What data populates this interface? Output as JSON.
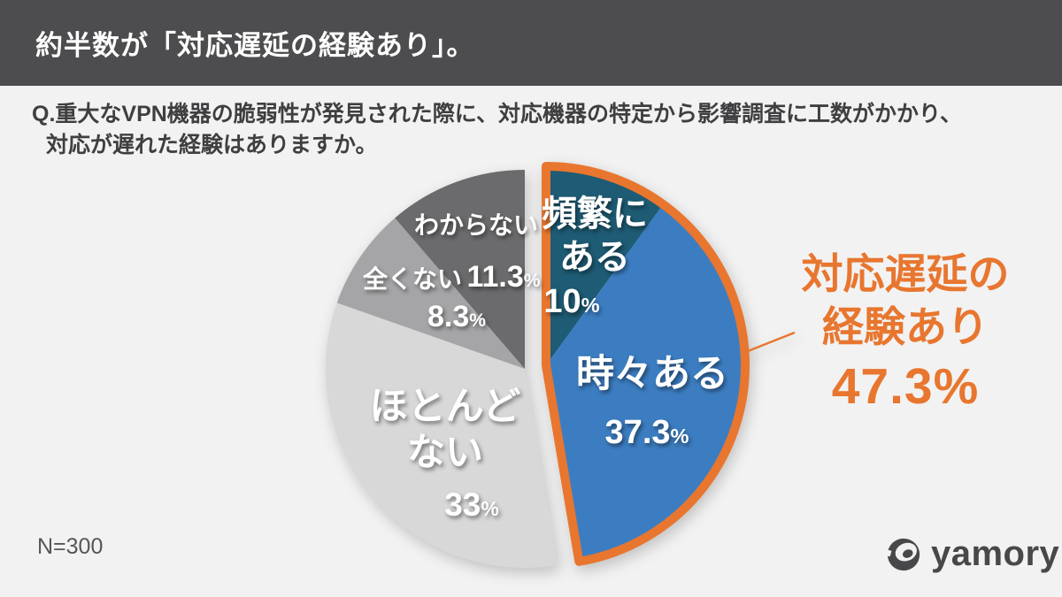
{
  "header": {
    "title": "約半数が「対応遅延の経験あり」。",
    "bg_color": "#4D4D4F",
    "text_color": "#FFFFFF"
  },
  "question": {
    "line1": "Q.重大なVPN機器の脆弱性が発見された際に、対応機器の特定から影響調査に工数がかかり、",
    "line2": "対応が遅れた経験はありますか。"
  },
  "chart_data": {
    "type": "pie",
    "unit": "%",
    "start_angle_deg": 0,
    "direction": "clockwise",
    "legend": "none",
    "categories": [
      "頻繁にある",
      "時々ある",
      "ほとんどない",
      "全くない",
      "わからない"
    ],
    "values": [
      10,
      37.3,
      33,
      8.3,
      11.3
    ],
    "percent_suffix": "%",
    "slices": [
      {
        "label": "頻繁に\nある",
        "value": 10,
        "value_display": "10",
        "color": "#1E5B74",
        "highlighted": true
      },
      {
        "label": "時々ある",
        "value": 37.3,
        "value_display": "37.3",
        "color": "#3C7DC1",
        "highlighted": true
      },
      {
        "label": "ほとんど\nない",
        "value": 33,
        "value_display": "33",
        "color": "#D8D8D8",
        "highlighted": false
      },
      {
        "label": "全くない",
        "value": 8.3,
        "value_display": "8.3",
        "color": "#A5A5A7",
        "highlighted": false
      },
      {
        "label": "わからない",
        "value": 11.3,
        "value_display": "11.3",
        "color": "#6B6B6D",
        "highlighted": false
      }
    ],
    "highlight_color": "#E8762F",
    "callout": {
      "line1": "対応遅延の",
      "line2": "経験あり",
      "value": "47.3%",
      "color": "#E8762F"
    }
  },
  "footer": {
    "sample_size": "N=300",
    "logo_text": "yamory"
  }
}
